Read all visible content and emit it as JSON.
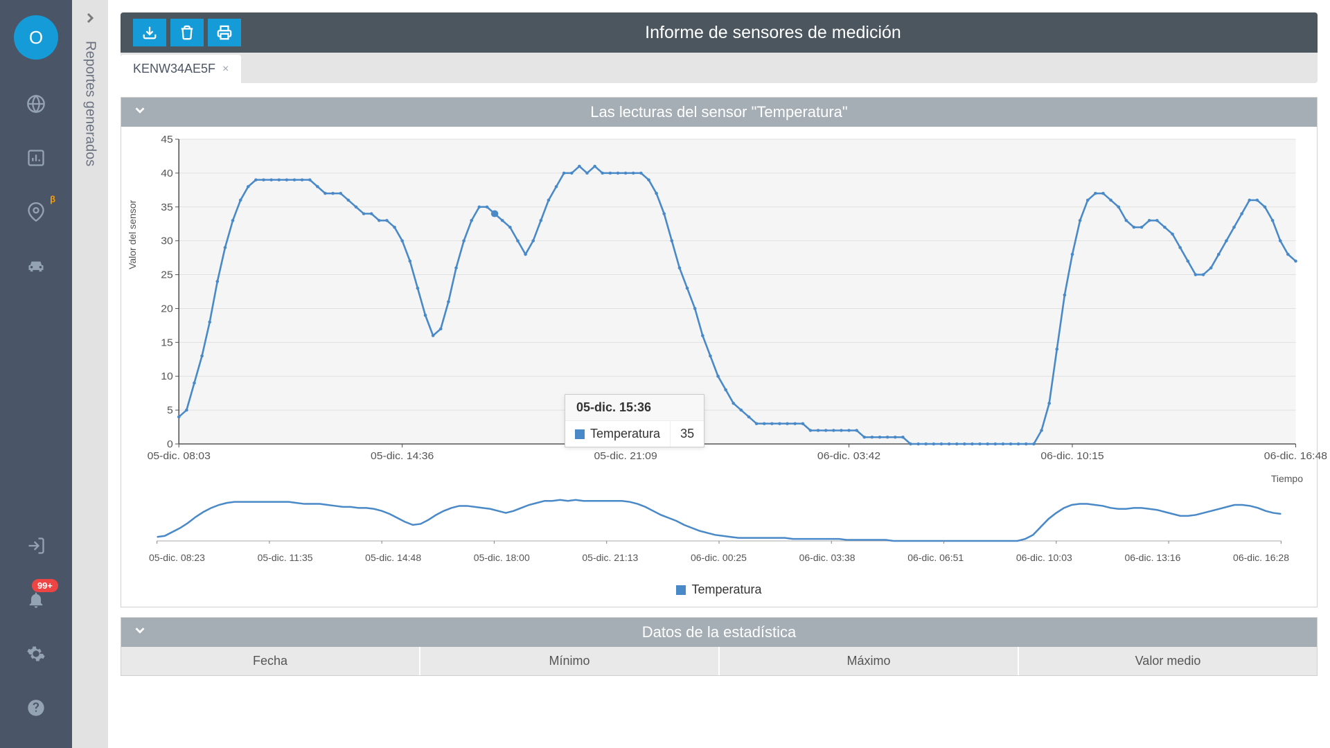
{
  "sidebar": {
    "avatar_letter": "O",
    "beta_label": "β",
    "notif_count": "99+"
  },
  "second_sidebar": {
    "label": "Reportes generados"
  },
  "header": {
    "title": "Informe de sensores de medición"
  },
  "tab": {
    "label": "KENW34AE5F"
  },
  "chart_panel": {
    "title": "Las lecturas del sensor \"Temperatura\"",
    "y_label": "Valor del sensor",
    "x_label": "Tiempo",
    "colors": {
      "line": "#4a89c8",
      "marker": "#4a89c8",
      "grid": "#e0e0e0",
      "axis": "#555555",
      "bg": "#f5f5f5"
    },
    "legend_label": "Temperatura",
    "ylim": [
      0,
      45
    ],
    "ytick_step": 5,
    "yticks": [
      0,
      5,
      10,
      15,
      20,
      25,
      30,
      35,
      40,
      45
    ],
    "xticks": [
      "05-dic. 08:03",
      "05-dic. 14:36",
      "05-dic. 21:09",
      "06-dic. 03:42",
      "06-dic. 10:15",
      "06-dic. 16:48"
    ],
    "data": [
      4,
      5,
      9,
      13,
      18,
      24,
      29,
      33,
      36,
      38,
      39,
      39,
      39,
      39,
      39,
      39,
      39,
      39,
      38,
      37,
      37,
      37,
      36,
      35,
      34,
      34,
      33,
      33,
      32,
      30,
      27,
      23,
      19,
      16,
      17,
      21,
      26,
      30,
      33,
      35,
      35,
      34,
      33,
      32,
      30,
      28,
      30,
      33,
      36,
      38,
      40,
      40,
      41,
      40,
      41,
      40,
      40,
      40,
      40,
      40,
      40,
      39,
      37,
      34,
      30,
      26,
      23,
      20,
      16,
      13,
      10,
      8,
      6,
      5,
      4,
      3,
      3,
      3,
      3,
      3,
      3,
      3,
      2,
      2,
      2,
      2,
      2,
      2,
      2,
      1,
      1,
      1,
      1,
      1,
      1,
      0,
      0,
      0,
      0,
      0,
      0,
      0,
      0,
      0,
      0,
      0,
      0,
      0,
      0,
      0,
      0,
      0,
      2,
      6,
      14,
      22,
      28,
      33,
      36,
      37,
      37,
      36,
      35,
      33,
      32,
      32,
      33,
      33,
      32,
      31,
      29,
      27,
      25,
      25,
      26,
      28,
      30,
      32,
      34,
      36,
      36,
      35,
      33,
      30,
      28,
      27
    ],
    "highlight_index": 41,
    "tooltip": {
      "time": "05-dic. 15:36",
      "series": "Temperatura",
      "value": "35"
    }
  },
  "mini_chart": {
    "xticks": [
      "05-dic. 08:23",
      "05-dic. 11:35",
      "05-dic. 14:48",
      "05-dic. 18:00",
      "05-dic. 21:13",
      "06-dic. 00:25",
      "06-dic. 03:38",
      "06-dic. 06:51",
      "06-dic. 10:03",
      "06-dic. 13:16",
      "06-dic. 16:28"
    ]
  },
  "stats_panel": {
    "title": "Datos de la estadística",
    "columns": [
      "Fecha",
      "Mínimo",
      "Máximo",
      "Valor medio"
    ]
  }
}
